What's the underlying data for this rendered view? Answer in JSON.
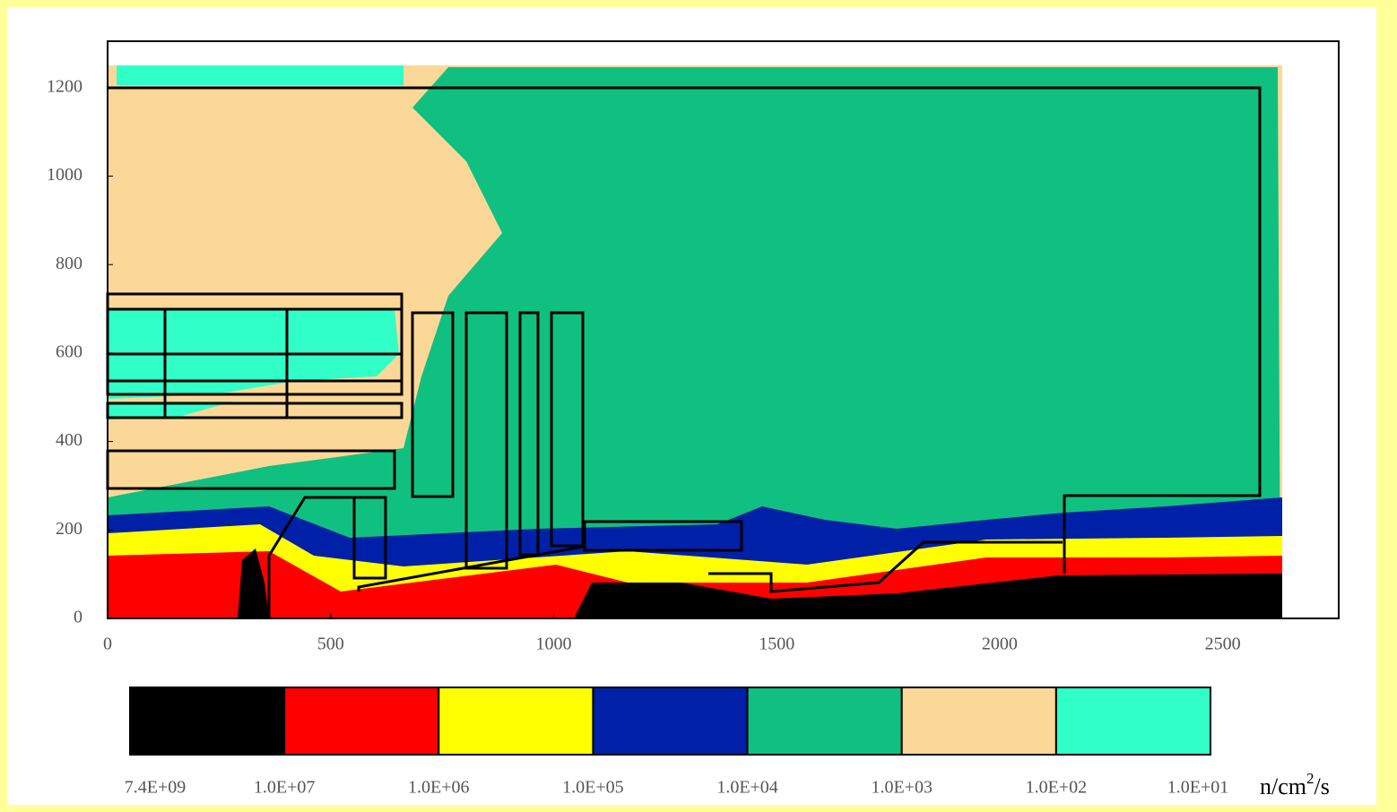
{
  "chart_data": {
    "type": "contour",
    "xlim": [
      0,
      2760
    ],
    "ylim": [
      0,
      1305
    ],
    "xticks": [
      0,
      500,
      1000,
      1500,
      2000,
      2500
    ],
    "yticks": [
      0,
      200,
      400,
      600,
      800,
      1000,
      1200
    ],
    "colorbar": {
      "levels": [
        {
          "value": 7400000000,
          "label": "7.4E+09"
        },
        {
          "value": 10000000,
          "label": "1.0E+07"
        },
        {
          "value": 1000000,
          "label": "1.0E+06"
        },
        {
          "value": 100000,
          "label": "1.0E+05"
        },
        {
          "value": 10000,
          "label": "1.0E+04"
        },
        {
          "value": 1000,
          "label": "1.0E+03"
        },
        {
          "value": 100,
          "label": "1.0E+02"
        },
        {
          "value": 10,
          "label": "1.0E+01"
        }
      ],
      "colors": [
        "#000000",
        "#ff0000",
        "#ffff00",
        "#0020a8",
        "#10c080",
        "#fcd898",
        "#30ffc8"
      ],
      "unit": {
        "base": "n/cm",
        "sup": "2",
        "tail": "/s"
      }
    }
  }
}
